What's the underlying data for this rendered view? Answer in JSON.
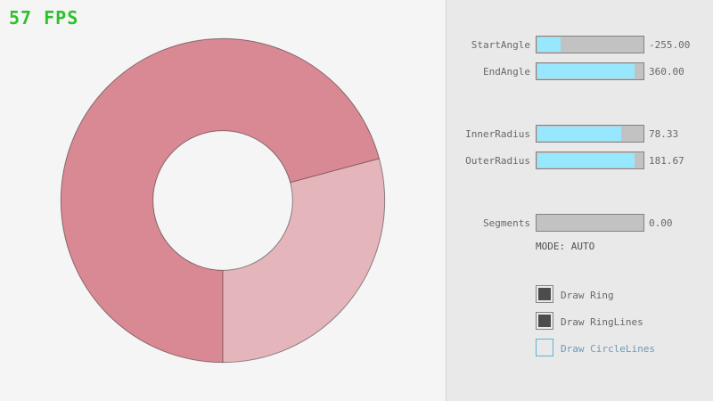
{
  "app": {
    "background": "#F5F5F5",
    "panel_background": "#E9E9E9",
    "panel_border": "#D4D4D4"
  },
  "fps": {
    "text": "57 FPS",
    "color": "#2EC12E"
  },
  "controls": {
    "sliders": [
      {
        "label": "StartAngle",
        "value": "-255.00",
        "fill_pct": 21.7
      },
      {
        "label": "EndAngle",
        "value": "360.00",
        "fill_pct": 90.6
      },
      {
        "label": "InnerRadius",
        "value": "78.33",
        "fill_pct": 78.3
      },
      {
        "label": "OuterRadius",
        "value": "181.67",
        "fill_pct": 90.8
      },
      {
        "label": "Segments",
        "value": "0.00",
        "fill_pct": 0
      }
    ],
    "mode_label": "MODE: AUTO",
    "checkboxes": [
      {
        "label": "Draw Ring",
        "checked": true,
        "focused": false
      },
      {
        "label": "Draw RingLines",
        "checked": true,
        "focused": false
      },
      {
        "label": "Draw CircleLines",
        "checked": false,
        "focused": true
      }
    ],
    "colors": {
      "slider_fill": "#97E8FF",
      "slider_track": "#C2C2C2",
      "slider_border": "#838383",
      "text": "#686868",
      "mode_text": "#505050",
      "check_fill": "#4C4C4C",
      "focused_border": "#5BB2D9",
      "focused_text": "#6C9BBC"
    }
  },
  "ring": {
    "start_angle": -255,
    "end_angle": 360,
    "inner_radius": 78.33,
    "outer_radius": 181.67,
    "color_single": "#E5B5BC",
    "color_overlap": "#D98994",
    "line_color": "rgba(0,0,0,0.42)"
  }
}
